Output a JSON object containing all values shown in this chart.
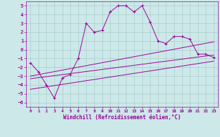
{
  "xlabel": "Windchill (Refroidissement éolien,°C)",
  "bg_color": "#cce8e8",
  "line_color": "#990099",
  "grid_color": "#aacccc",
  "xlim": [
    -0.5,
    23.5
  ],
  "ylim": [
    -6.5,
    5.5
  ],
  "yticks": [
    -6,
    -5,
    -4,
    -3,
    -2,
    -1,
    0,
    1,
    2,
    3,
    4,
    5
  ],
  "xticks": [
    0,
    1,
    2,
    3,
    4,
    5,
    6,
    7,
    8,
    9,
    10,
    11,
    12,
    13,
    14,
    15,
    16,
    17,
    18,
    19,
    20,
    21,
    22,
    23
  ],
  "main_x": [
    0,
    1,
    2,
    3,
    4,
    5,
    6,
    7,
    8,
    9,
    10,
    11,
    12,
    13,
    14,
    15,
    16,
    17,
    18,
    19,
    20,
    21,
    22,
    23
  ],
  "main_y": [
    -1.5,
    -2.5,
    -4.0,
    -5.5,
    -3.2,
    -2.8,
    -1.0,
    3.0,
    2.0,
    2.2,
    4.3,
    5.0,
    5.0,
    4.3,
    5.0,
    3.2,
    1.0,
    0.7,
    1.5,
    1.5,
    1.2,
    -0.5,
    -0.5,
    -0.9
  ],
  "line1_x": [
    0,
    23
  ],
  "line1_y": [
    -3.0,
    0.9
  ],
  "line2_x": [
    0,
    23
  ],
  "line2_y": [
    -3.3,
    -0.6
  ],
  "line3_x": [
    0,
    23
  ],
  "line3_y": [
    -4.5,
    -1.3
  ]
}
